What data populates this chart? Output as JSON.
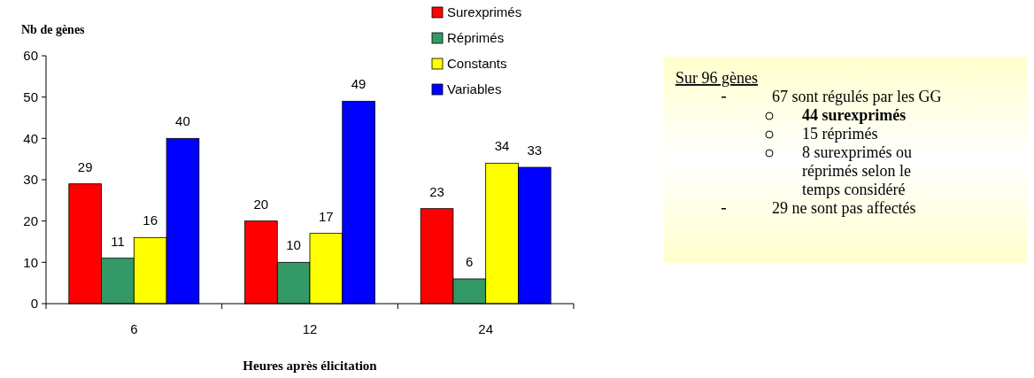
{
  "chart_data": [
    {
      "type": "bar",
      "ylabel": "Nb de gènes",
      "xlabel": "Heures après élicitation",
      "categories": [
        "6",
        "12",
        "24"
      ],
      "ylim": [
        0,
        60
      ],
      "yticks": [
        0,
        10,
        20,
        30,
        40,
        50,
        60
      ],
      "data_labels": true,
      "legend": "top right",
      "grid": false,
      "series": [
        {
          "name": "Surexprimés",
          "color": "#ff0000",
          "values": [
            29,
            20,
            23
          ]
        },
        {
          "name": "Réprimés",
          "color": "#339966",
          "values": [
            11,
            10,
            6
          ]
        },
        {
          "name": "Constants",
          "color": "#ffff00",
          "values": [
            16,
            17,
            34
          ]
        },
        {
          "name": "Variables",
          "color": "#0000ff",
          "values": [
            40,
            49,
            33
          ]
        }
      ]
    },
    {
      "type": "other",
      "title": "Sur 96 gènes",
      "annotations": [
        "67 sont régulés par les GG",
        "44 surexprimés",
        "15 réprimés",
        "8 surexprimés ou réprimés selon le temps considéré",
        "29 ne sont pas affectés"
      ]
    }
  ]
}
